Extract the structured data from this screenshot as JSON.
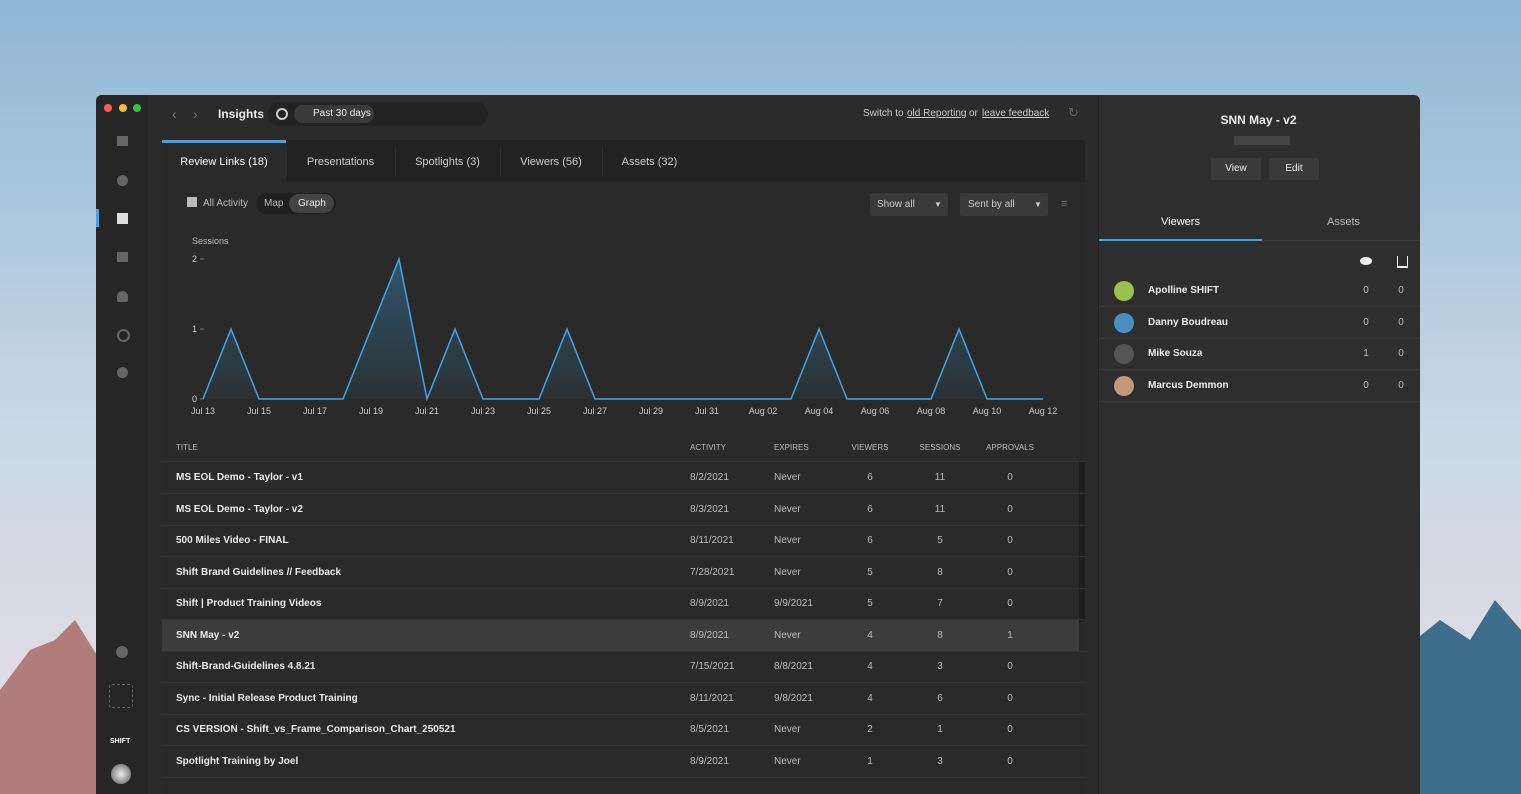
{
  "nav": {
    "title": "Insights",
    "date_filter": "Past 30 days",
    "switch_text": "Switch to",
    "old_reporting": "old Reporting",
    "or": "or",
    "leave_feedback": "leave feedback"
  },
  "sidebar": {
    "logo": "SHIFT"
  },
  "tabs": [
    "Review Links (18)",
    "Presentations",
    "Spotlights (3)",
    "Viewers (56)",
    "Assets (32)"
  ],
  "controls": {
    "all_activity": "All Activity",
    "map": "Map",
    "graph": "Graph",
    "show_all": "Show all",
    "sent_by": "Sent by all"
  },
  "chart_data": {
    "type": "line",
    "y_label": "Sessions",
    "categories": [
      "Jul 13",
      null,
      "Jul 15",
      null,
      "Jul 17",
      null,
      "Jul 19",
      null,
      "Jul 21",
      null,
      "Jul 23",
      null,
      "Jul 25",
      null,
      "Jul 27",
      null,
      "Jul 29",
      null,
      "Jul 31",
      null,
      "Aug 02",
      null,
      "Aug 04",
      null,
      "Aug 06",
      null,
      "Aug 08",
      null,
      "Aug 10",
      null,
      "Aug 12"
    ],
    "values": [
      0,
      1,
      0,
      0,
      0,
      0,
      1,
      2,
      0,
      1,
      0,
      0,
      0,
      1,
      0,
      0,
      0,
      0,
      0,
      0,
      0,
      0,
      1,
      0,
      0,
      0,
      0,
      1,
      0,
      0,
      0
    ],
    "color": "#3ea6e8",
    "ylim": [
      0,
      2
    ],
    "yticks": [
      0,
      1,
      2
    ]
  },
  "table": {
    "headers": [
      "TITLE",
      "ACTIVITY",
      "EXPIRES",
      "VIEWERS",
      "SESSIONS",
      "APPROVALS"
    ],
    "rows": [
      [
        "MS EOL Demo - Taylor - v1",
        "8/2/2021",
        "Never",
        6,
        11,
        0
      ],
      [
        "MS EOL Demo - Taylor - v2",
        "8/3/2021",
        "Never",
        6,
        11,
        0
      ],
      [
        "500 Miles Video - FINAL",
        "8/11/2021",
        "Never",
        6,
        5,
        0
      ],
      [
        "Shift Brand Guidelines // Feedback",
        "7/28/2021",
        "Never",
        5,
        8,
        0
      ],
      [
        "Shift | Product Training Videos",
        "8/9/2021",
        "9/9/2021",
        5,
        7,
        0
      ],
      [
        "SNN May - v2",
        "8/9/2021",
        "Never",
        4,
        8,
        1
      ],
      [
        "Shift-Brand-Guidelines 4.8.21",
        "7/15/2021",
        "8/8/2021",
        4,
        3,
        0
      ],
      [
        "Sync - Initial Release Product Training",
        "8/11/2021",
        "9/8/2021",
        4,
        6,
        0
      ],
      [
        "CS VERSION - Shift_vs_Frame_Comparison_Chart_250521",
        "8/5/2021",
        "Never",
        2,
        1,
        0
      ],
      [
        "Spotlight Training by Joel",
        "8/9/2021",
        "Never",
        1,
        3,
        0
      ]
    ]
  },
  "panel": {
    "title": "SNN May - v2",
    "buttons": [
      "View",
      "Edit"
    ],
    "tabs": [
      "Viewers",
      "Assets"
    ],
    "viewers": [
      {
        "name": "Apolline SHIFT",
        "views": 0,
        "downloads": 0
      },
      {
        "name": "Danny Boudreau",
        "views": 0,
        "downloads": 0
      },
      {
        "name": "Mike Souza",
        "views": 1,
        "downloads": 0
      },
      {
        "name": "Marcus Demmon",
        "views": 0,
        "downloads": 0
      }
    ]
  }
}
